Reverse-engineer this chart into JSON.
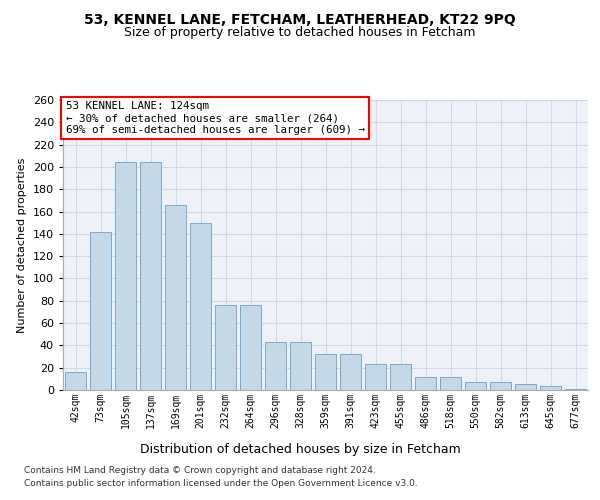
{
  "title1": "53, KENNEL LANE, FETCHAM, LEATHERHEAD, KT22 9PQ",
  "title2": "Size of property relative to detached houses in Fetcham",
  "xlabel": "Distribution of detached houses by size in Fetcham",
  "ylabel": "Number of detached properties",
  "bar_labels": [
    "42sqm",
    "73sqm",
    "105sqm",
    "137sqm",
    "169sqm",
    "201sqm",
    "232sqm",
    "264sqm",
    "296sqm",
    "328sqm",
    "359sqm",
    "391sqm",
    "423sqm",
    "455sqm",
    "486sqm",
    "518sqm",
    "550sqm",
    "582sqm",
    "613sqm",
    "645sqm",
    "677sqm"
  ],
  "bar_values": [
    16,
    142,
    204,
    204,
    166,
    150,
    76,
    76,
    43,
    43,
    32,
    32,
    23,
    23,
    12,
    12,
    7,
    7,
    5,
    4,
    1
  ],
  "bar_color": "#c5d8e8",
  "bar_edge_color": "#7aaacc",
  "bg_color": "#eef2f8",
  "grid_color": "#d0d8e8",
  "annotation_box_text": "53 KENNEL LANE: 124sqm\n← 30% of detached houses are smaller (264)\n69% of semi-detached houses are larger (609) →",
  "annotation_box_color": "white",
  "annotation_box_edge_color": "red",
  "footnote1": "Contains HM Land Registry data © Crown copyright and database right 2024.",
  "footnote2": "Contains public sector information licensed under the Open Government Licence v3.0.",
  "ylim": [
    0,
    260
  ],
  "yticks": [
    0,
    20,
    40,
    60,
    80,
    100,
    120,
    140,
    160,
    180,
    200,
    220,
    240,
    260
  ]
}
